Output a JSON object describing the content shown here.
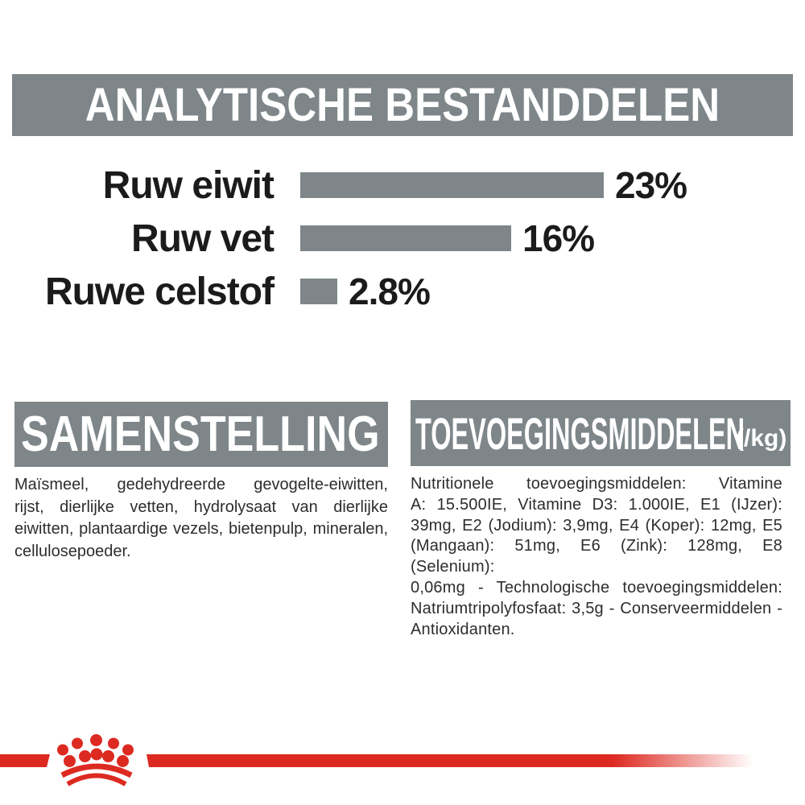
{
  "page": {
    "background": "#ffffff",
    "gray": "#7e8689",
    "red": "#dd2a21",
    "text_color": "#2d2d2d"
  },
  "analytical": {
    "title": "ANALYTISCHE BESTANDDELEN"
  },
  "chart_data": {
    "type": "bar",
    "orientation": "horizontal",
    "title": "ANALYTISCHE BESTANDDELEN",
    "categories": [
      "Ruw eiwit",
      "Ruw vet",
      "Ruwe celstof"
    ],
    "values": [
      23,
      16,
      2.8
    ],
    "value_labels": [
      "23%",
      "16%",
      "2.8%"
    ],
    "unit": "%",
    "xlim": [
      0,
      25
    ],
    "bar_color": "#7e8689",
    "label_color": "#1b1b1b",
    "grid": false,
    "legend": false
  },
  "samenstelling": {
    "title": "SAMENSTELLING",
    "body": "Maïsmeel, gedehydreerde gevogelte-eiwitten, rijst, dierlijke vetten, hydrolysaat van dierlijke eiwitten, plantaardige vezels, bietenpulp, mineralen, cellulosepoeder.",
    "lines": [
      "Maïsmeel, gedehydreerde gevogelte-eiwitten,",
      "rijst, dierlijke vetten, hydrolysaat van dierlijke",
      "eiwitten, plantaardige vezels, bietenpulp, mineralen,",
      "cellulosepoeder."
    ]
  },
  "toevoegingsmiddelen": {
    "title": "TOEVOEGINGSMIDDELEN",
    "unit": "(/kg)",
    "body": "Nutritionele toevoegingsmiddelen: Vitamine A: 15.500IE, Vitamine D3: 1.000IE, E1 (IJzer): 39mg, E2 (Jodium): 3,9mg, E4 (Koper): 12mg, E5 (Mangaan): 51mg, E6 (Zink): 128mg, E8 (Selenium): 0,06mg - Technologische toevoegingsmiddelen: Natriumtripolyfosfaat: 3,5g - Conserveermiddelen - Antioxidanten.",
    "lines": [
      "Nutritionele toevoegingsmiddelen: Vitamine",
      "A: 15.500IE, Vitamine D3: 1.000IE, E1 (IJzer):",
      "39mg, E2 (Jodium): 3,9mg, E4 (Koper): 12mg, E5",
      "(Mangaan): 51mg, E6 (Zink): 128mg, E8 (Selenium):",
      "0,06mg - Technologische toevoegingsmiddelen:",
      "Natriumtripolyfosfaat: 3,5g - Conserveermiddelen -",
      "Antioxidanten."
    ]
  },
  "footer": {
    "logo": "royal-canin-crown",
    "logo_color": "#dd2a21"
  }
}
